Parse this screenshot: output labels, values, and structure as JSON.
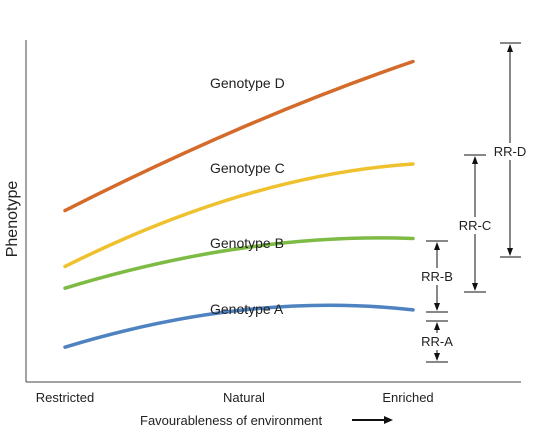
{
  "chart_data": {
    "type": "line",
    "ylabel": "Phenotype",
    "xlabel": "Favourableness of environment",
    "categories": [
      "Restricted",
      "Natural",
      "Enriched"
    ],
    "series": [
      {
        "name": "Genotype D",
        "color": "#d46b2a",
        "values": [
          0.52,
          0.79,
          1.0
        ]
      },
      {
        "name": "Genotype C",
        "color": "#efc12e",
        "values": [
          0.34,
          0.57,
          0.67
        ]
      },
      {
        "name": "Genotype B",
        "color": "#7dbb45",
        "values": [
          0.27,
          0.4,
          0.43
        ]
      },
      {
        "name": "Genotype A",
        "color": "#4e82c0",
        "values": [
          0.08,
          0.2,
          0.2
        ]
      }
    ],
    "range_labels": [
      "RR-D",
      "RR-C",
      "RR-B",
      "RR-A"
    ],
    "ylim": [
      0,
      1.05
    ],
    "grid": false
  }
}
